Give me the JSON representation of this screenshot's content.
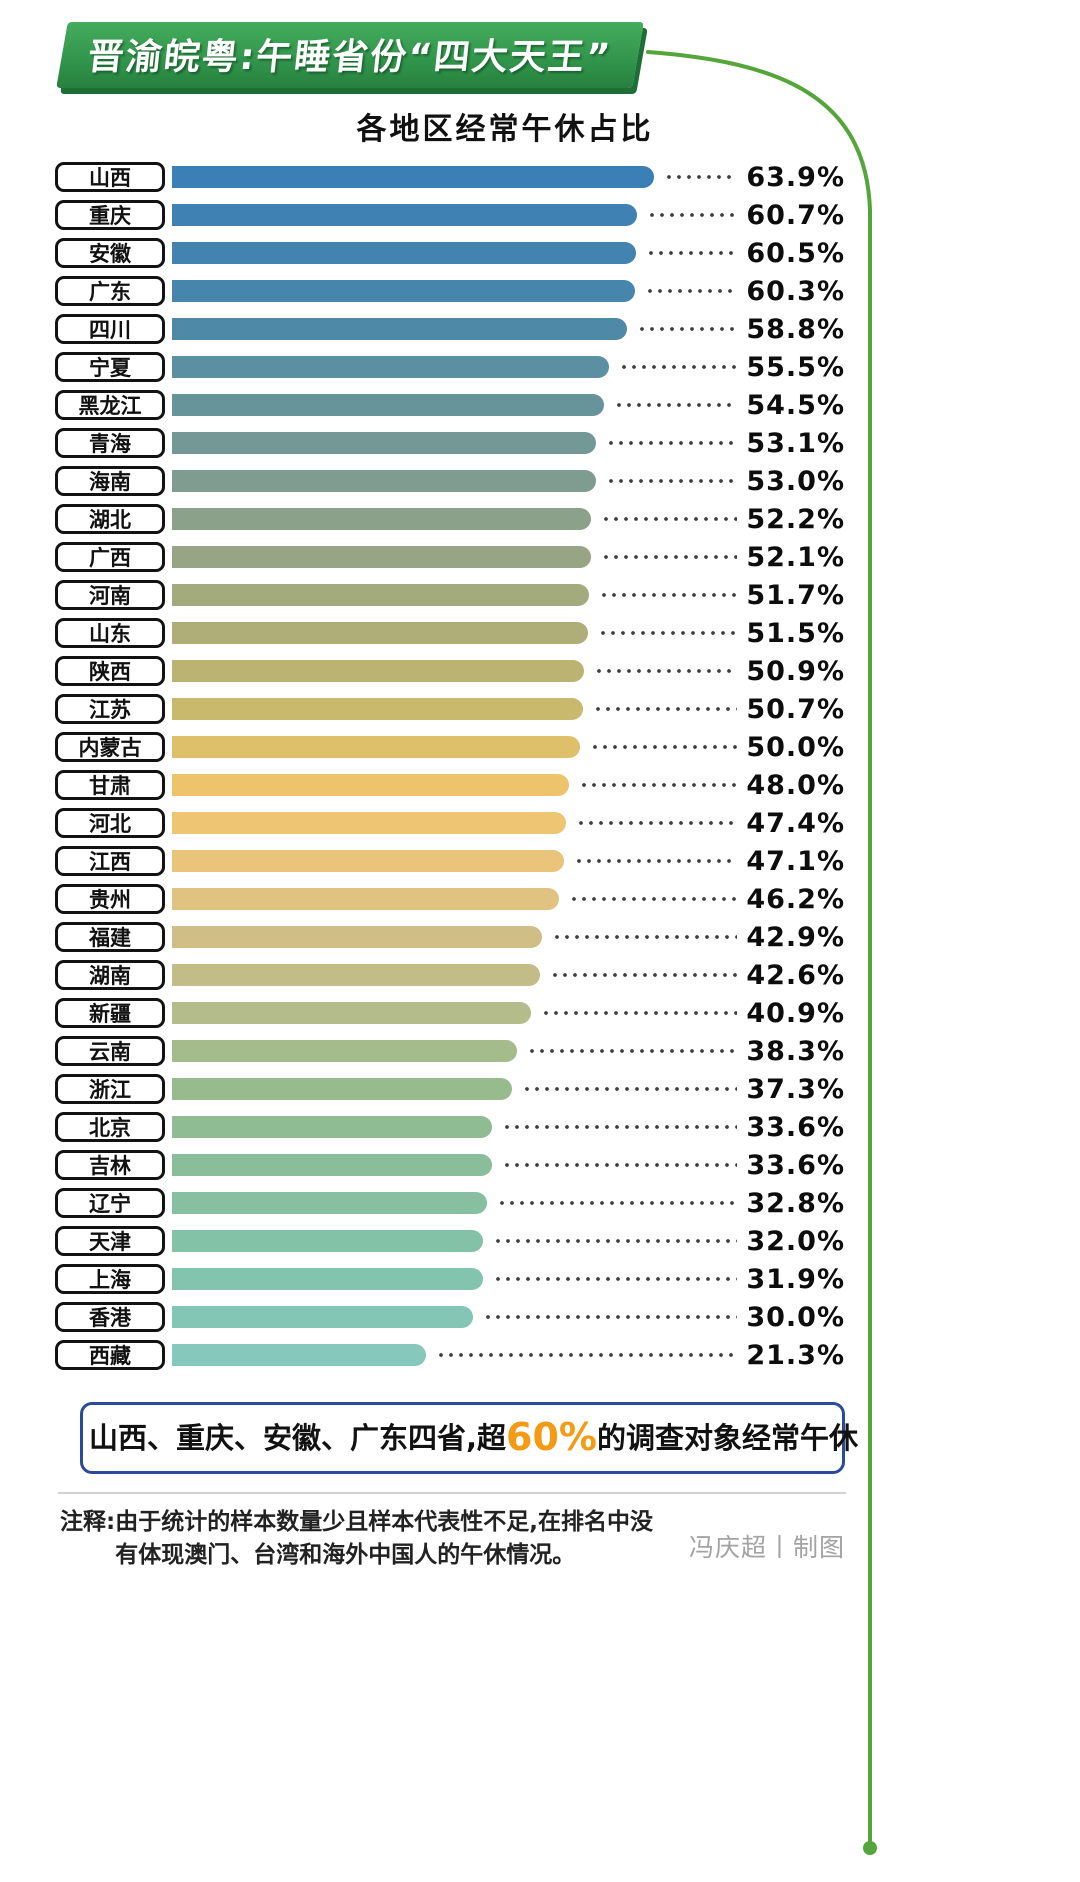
{
  "header": {
    "banner_title": "晋渝皖粤:午睡省份“四大天王”",
    "banner_color": "#2e9048",
    "banner_shadow_color": "#1d6f35",
    "accent_line_color": "#55a63a"
  },
  "chart_data": {
    "type": "bar",
    "orientation": "horizontal",
    "title": "各地区经常午休占比",
    "unit": "%",
    "xlim": [
      0,
      70
    ],
    "legend": false,
    "categories": [
      "山西",
      "重庆",
      "安徽",
      "广东",
      "四川",
      "宁夏",
      "黑龙江",
      "青海",
      "海南",
      "湖北",
      "广西",
      "河南",
      "山东",
      "陕西",
      "江苏",
      "内蒙古",
      "甘肃",
      "河北",
      "江西",
      "贵州",
      "福建",
      "湖南",
      "新疆",
      "云南",
      "浙江",
      "北京",
      "吉林",
      "辽宁",
      "天津",
      "上海",
      "香港",
      "西藏"
    ],
    "values": [
      63.9,
      60.7,
      60.5,
      60.3,
      58.8,
      55.5,
      54.5,
      53.1,
      53.0,
      52.2,
      52.1,
      51.7,
      51.5,
      50.9,
      50.7,
      50.0,
      48.0,
      47.4,
      47.1,
      46.2,
      42.9,
      42.6,
      40.9,
      38.3,
      37.3,
      33.6,
      33.6,
      32.8,
      32.0,
      31.9,
      30.0,
      21.3
    ],
    "bar_colors": [
      "#3a7fb5",
      "#3e81b2",
      "#4383af",
      "#4785ad",
      "#4f89a8",
      "#5c8fa1",
      "#67939b",
      "#739896",
      "#7f9c90",
      "#8ba18a",
      "#97a584",
      "#a3aa7e",
      "#afae78",
      "#bbb372",
      "#c9b96c",
      "#dfc06a",
      "#edc46c",
      "#eec573",
      "#e9c47a",
      "#e0c281",
      "#cfbf86",
      "#c2bd88",
      "#b3bc8a",
      "#a4bb8c",
      "#98bb8e",
      "#90bc93",
      "#8abe9a",
      "#86c0a1",
      "#84c2a8",
      "#83c4af",
      "#84c6b6",
      "#87c8bd"
    ]
  },
  "callout": {
    "prefix": "山西、重庆、安徽、广东四省,超",
    "highlight": "60%",
    "suffix": "的调查对象经常午休",
    "border_color": "#2b4a9b",
    "highlight_color": "#f49a14"
  },
  "footer": {
    "note_label": "注释:",
    "note_line1": "由于统计的样本数量少且样本代表性不足,在排名中没",
    "note_line2": "有体现澳门、台湾和海外中国人的午休情况。",
    "credit": "冯庆超丨制图"
  }
}
